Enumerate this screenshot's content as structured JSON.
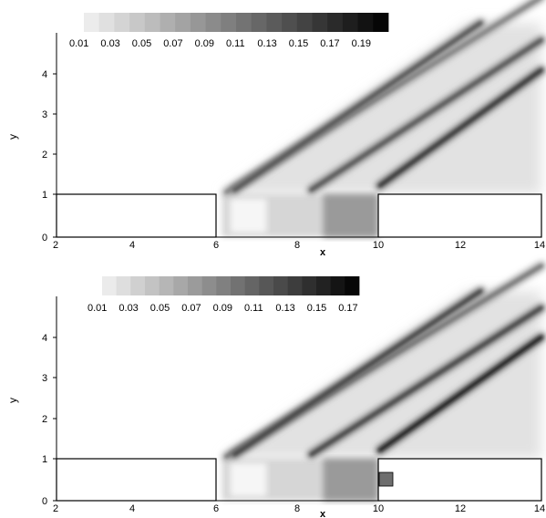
{
  "chart_data": [
    {
      "type": "heatmap",
      "xlabel": "x",
      "ylabel": "y",
      "xlim": [
        2,
        14
      ],
      "ylim": [
        0,
        5
      ],
      "xticks": [
        "2",
        "4",
        "6",
        "8",
        "10",
        "12",
        "14"
      ],
      "yticks": [
        "0",
        "1",
        "2",
        "3",
        "4"
      ],
      "colorbar": {
        "labels": [
          "0.01",
          "0.03",
          "0.05",
          "0.07",
          "0.09",
          "0.11",
          "0.13",
          "0.15",
          "0.17",
          "0.19"
        ],
        "levels": 20,
        "min": 0.0,
        "max": 0.2
      },
      "geometry": {
        "step_left": {
          "x": [
            2,
            6
          ],
          "y": [
            0,
            1
          ]
        },
        "step_right": {
          "x": [
            10,
            14
          ],
          "y": [
            0,
            1
          ]
        }
      },
      "features": [
        {
          "x": [
            6.2,
            14
          ],
          "y": [
            1.05,
            5.6
          ],
          "value": 0.07
        },
        {
          "x": [
            6.4,
            12.5
          ],
          "y": [
            1.1,
            5.0
          ],
          "value": 0.1
        },
        {
          "x": [
            8.3,
            14
          ],
          "y": [
            1.1,
            4.6
          ],
          "value": 0.1
        },
        {
          "x": [
            10.0,
            14
          ],
          "y": [
            1.2,
            3.9
          ],
          "value": 0.12
        },
        {
          "x": [
            10.0,
            14
          ],
          "y": [
            1.15,
            1.15
          ],
          "value": 0.19
        },
        {
          "x": [
            7.0,
            10.0
          ],
          "y": [
            1.15,
            1.15
          ],
          "value": 0.17
        }
      ]
    },
    {
      "type": "heatmap",
      "xlabel": "x",
      "ylabel": "y",
      "xlim": [
        2,
        14
      ],
      "ylim": [
        0,
        5
      ],
      "xticks": [
        "2",
        "4",
        "6",
        "8",
        "10",
        "12",
        "14"
      ],
      "yticks": [
        "0",
        "1",
        "2",
        "3",
        "4"
      ],
      "colorbar": {
        "labels": [
          "0.01",
          "0.03",
          "0.05",
          "0.07",
          "0.09",
          "0.11",
          "0.13",
          "0.15",
          "0.17"
        ],
        "levels": 18,
        "min": 0.0,
        "max": 0.18
      },
      "geometry": {
        "step_left": {
          "x": [
            2,
            6
          ],
          "y": [
            0,
            1
          ]
        },
        "step_right": {
          "x": [
            10,
            14
          ],
          "y": [
            0,
            1
          ]
        },
        "cavity_block": {
          "x": [
            10,
            10.35
          ],
          "y": [
            0.35,
            0.7
          ]
        }
      },
      "features": [
        {
          "x": [
            6.2,
            14
          ],
          "y": [
            1.05,
            5.6
          ],
          "value": 0.07
        },
        {
          "x": [
            6.4,
            12.5
          ],
          "y": [
            1.1,
            5.0
          ],
          "value": 0.1
        },
        {
          "x": [
            8.3,
            14
          ],
          "y": [
            1.1,
            4.6
          ],
          "value": 0.1
        },
        {
          "x": [
            10.0,
            14
          ],
          "y": [
            1.2,
            3.9
          ],
          "value": 0.12
        },
        {
          "x": [
            10.0,
            14
          ],
          "y": [
            1.15,
            1.15
          ],
          "value": 0.17
        },
        {
          "x": [
            7.0,
            10.0
          ],
          "y": [
            1.15,
            1.15
          ],
          "value": 0.15
        }
      ]
    }
  ]
}
